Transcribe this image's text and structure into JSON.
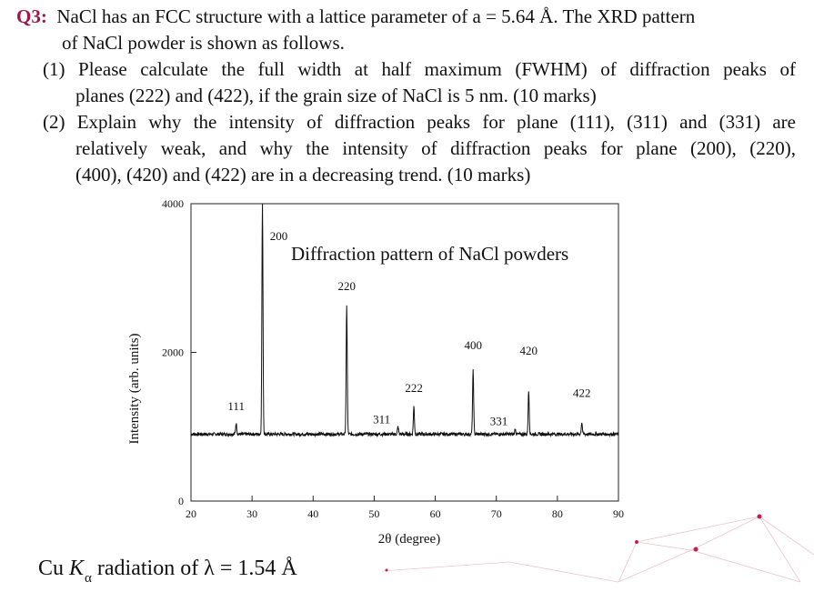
{
  "question": {
    "label": "Q3:",
    "intro_line1": "NaCl has an FCC structure with a lattice parameter of a = 5.64 Å. The XRD pattern",
    "intro_line2": "of NaCl powder is shown as follows.",
    "part1_line1": "(1) Please calculate the full width at half maximum (FWHM) of diffraction peaks of",
    "part1_line2": "planes (222) and (422), if the grain size of NaCl is 5 nm. (10 marks)",
    "part2_line1": "(2) Explain why the intensity of diffraction peaks for plane (111), (311) and (331) are",
    "part2_line2": "relatively weak, and why the intensity of diffraction peaks for plane (200), (220),",
    "part2_line3": "(400),  (420) and (422) are in a decreasing trend. (10 marks)"
  },
  "caption": {
    "prefix": "Cu ",
    "k": "K",
    "sub": "α",
    "suffix": " radiation of λ = 1.54 Å"
  },
  "chart_data": {
    "type": "line",
    "title": "Diffraction pattern of NaCl powders",
    "xlabel": "2θ (degree)",
    "ylabel": "Intensity (arb. units)",
    "xlim": [
      20,
      90
    ],
    "ylim": [
      0,
      4000
    ],
    "x_ticks": [
      20,
      30,
      40,
      50,
      60,
      70,
      80,
      90
    ],
    "y_ticks": [
      0,
      2000,
      4000
    ],
    "baseline": 900,
    "peaks": [
      {
        "label": "111",
        "x": 27.4,
        "y": 1050
      },
      {
        "label": "200",
        "x": 31.7,
        "y": 4000
      },
      {
        "label": "220",
        "x": 45.5,
        "y": 2620
      },
      {
        "label": "311",
        "x": 53.9,
        "y": 1000
      },
      {
        "label": "222",
        "x": 56.5,
        "y": 1270
      },
      {
        "label": "400",
        "x": 66.2,
        "y": 1750
      },
      {
        "label": "331",
        "x": 73.1,
        "y": 970
      },
      {
        "label": "420",
        "x": 75.3,
        "y": 1480
      },
      {
        "label": "422",
        "x": 84.0,
        "y": 1060
      }
    ]
  }
}
